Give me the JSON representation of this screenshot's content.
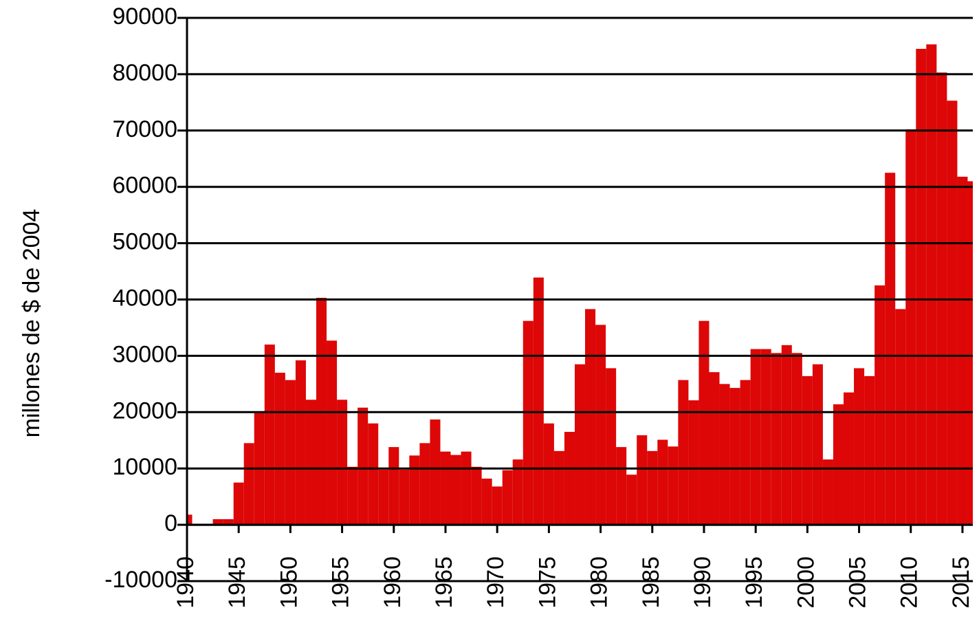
{
  "chart_data": {
    "type": "bar",
    "y_label": "millones de $ de 2004",
    "x": [
      1940,
      1941,
      1942,
      1943,
      1944,
      1945,
      1946,
      1947,
      1948,
      1949,
      1950,
      1951,
      1952,
      1953,
      1954,
      1955,
      1956,
      1957,
      1958,
      1959,
      1960,
      1961,
      1962,
      1963,
      1964,
      1965,
      1966,
      1967,
      1968,
      1969,
      1970,
      1971,
      1972,
      1973,
      1974,
      1975,
      1976,
      1977,
      1978,
      1979,
      1980,
      1981,
      1982,
      1983,
      1984,
      1985,
      1986,
      1987,
      1988,
      1989,
      1990,
      1991,
      1992,
      1993,
      1994,
      1995,
      1996,
      1997,
      1998,
      1999,
      2000,
      2001,
      2002,
      2003,
      2004,
      2005,
      2006,
      2007,
      2008,
      2009,
      2010,
      2011,
      2012,
      2013,
      2014,
      2015,
      2016
    ],
    "values": [
      1800,
      0,
      0,
      1000,
      1000,
      7500,
      14500,
      20000,
      32000,
      27000,
      25700,
      29200,
      22200,
      40300,
      32700,
      22200,
      10300,
      20800,
      18000,
      9800,
      13800,
      9800,
      12300,
      14500,
      18700,
      13000,
      12400,
      13000,
      10300,
      8200,
      6800,
      9700,
      11600,
      36200,
      43900,
      18000,
      13100,
      16500,
      28500,
      38300,
      35500,
      27800,
      13800,
      8900,
      15900,
      13100,
      15100,
      13900,
      25700,
      22100,
      36200,
      27100,
      25000,
      24300,
      25700,
      31200,
      31200,
      30500,
      31900,
      30500,
      26400,
      28500,
      11600,
      21400,
      23500,
      27800,
      26400,
      42500,
      62500,
      38300,
      70200,
      84500,
      85300,
      80300,
      75300,
      61800,
      61000
    ],
    "color": "#dd0707",
    "xlim": [
      1940,
      2016
    ],
    "xticks": [
      1940,
      1945,
      1950,
      1955,
      1960,
      1965,
      1970,
      1975,
      1980,
      1985,
      1990,
      1995,
      2000,
      2005,
      2010,
      2015
    ],
    "ylim": [
      -10000,
      90000
    ],
    "yticks": [
      -10000,
      0,
      10000,
      20000,
      30000,
      40000,
      50000,
      60000,
      70000,
      80000,
      90000
    ],
    "grid": true
  }
}
